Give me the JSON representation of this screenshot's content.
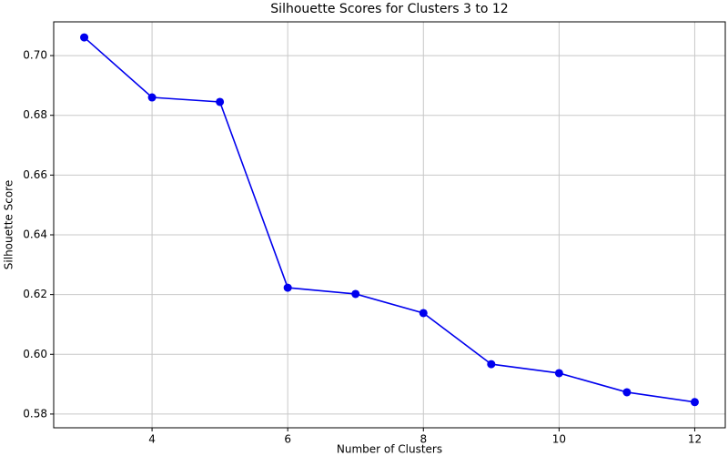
{
  "chart_data": {
    "type": "line",
    "title": "Silhouette Scores for Clusters 3 to 12",
    "x_label": "Number of Clusters",
    "y_label": "Silhouette Score",
    "series": [
      {
        "name": "Silhouette Score",
        "color": "#0000ee",
        "x": [
          3,
          4,
          5,
          6,
          7,
          8,
          9,
          10,
          11,
          12
        ],
        "values": [
          0.7061,
          0.686,
          0.6845,
          0.6223,
          0.6202,
          0.6138,
          0.5967,
          0.5937,
          0.5873,
          0.584
        ]
      }
    ],
    "xlim": [
      2.55,
      12.45
    ],
    "ylim": [
      0.5754,
      0.7113
    ],
    "xticks": [
      4,
      6,
      8,
      10,
      12
    ],
    "yticks": [
      0.58,
      {
        "value": 0.6,
        "label": "0.60"
      },
      0.62,
      0.64,
      0.66,
      0.68,
      {
        "value": 0.7,
        "label": "0.70"
      }
    ],
    "grid": true
  }
}
